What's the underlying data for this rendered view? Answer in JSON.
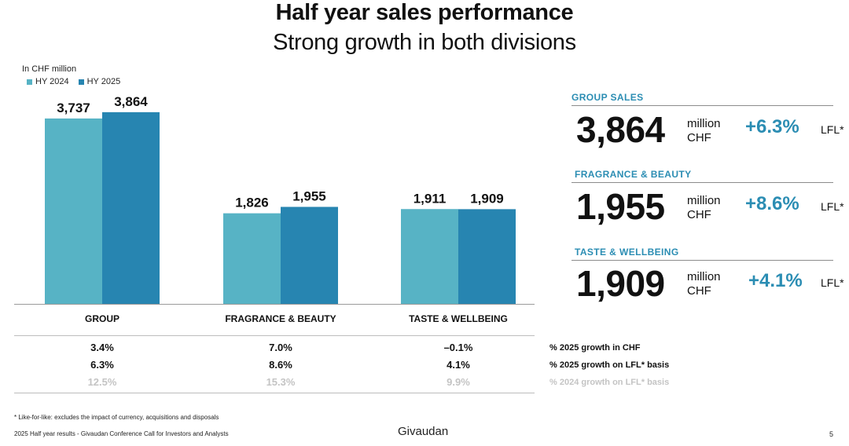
{
  "title": "Half year sales performance",
  "subtitle": "Strong growth in both divisions",
  "unit_label": "In CHF million",
  "colors": {
    "hy2024": "#57b3c5",
    "hy2025": "#2785b1",
    "accent": "#2b8db3"
  },
  "chart_data": {
    "type": "bar",
    "categories": [
      "GROUP",
      "FRAGRANCE & BEAUTY",
      "TASTE & WELLBEING"
    ],
    "series": [
      {
        "name": "HY 2024",
        "values": [
          3737,
          1826,
          1911
        ],
        "labels": [
          "3,737",
          "1,826",
          "1,911"
        ]
      },
      {
        "name": "HY 2025",
        "values": [
          3864,
          1955,
          1909
        ],
        "labels": [
          "3,864",
          "1,955",
          "1,909"
        ]
      }
    ],
    "ylim": [
      0,
      4400
    ]
  },
  "table": {
    "rows": [
      {
        "label": "% 2025 growth in CHF",
        "values": [
          "3.4%",
          "7.0%",
          "–0.1%"
        ],
        "faded": false
      },
      {
        "label": "% 2025 growth on LFL* basis",
        "values": [
          "6.3%",
          "8.6%",
          "4.1%"
        ],
        "faded": false
      },
      {
        "label": "% 2024 growth on LFL* basis",
        "values": [
          "12.5%",
          "15.3%",
          "9.9%"
        ],
        "faded": true
      }
    ]
  },
  "kpis": [
    {
      "header": "GROUP SALES",
      "value": "3,864",
      "unit_line1": "million",
      "unit_line2": "CHF",
      "growth": "+6.3%",
      "lfl": "LFL*"
    },
    {
      "header": "FRAGRANCE & BEAUTY",
      "value": "1,955",
      "unit_line1": "million",
      "unit_line2": "CHF",
      "growth": "+8.6%",
      "lfl": "LFL*"
    },
    {
      "header": "TASTE & WELLBEING",
      "value": "1,909",
      "unit_line1": "million",
      "unit_line2": "CHF",
      "growth": "+4.1%",
      "lfl": "LFL*"
    }
  ],
  "footnote": "* Like-for-like: excludes the impact of currency, acquisitions and disposals",
  "footer": "2025 Half year results - Givaudan Conference Call for Investors and Analysts",
  "brand": "Givaudan",
  "page_number": "5"
}
